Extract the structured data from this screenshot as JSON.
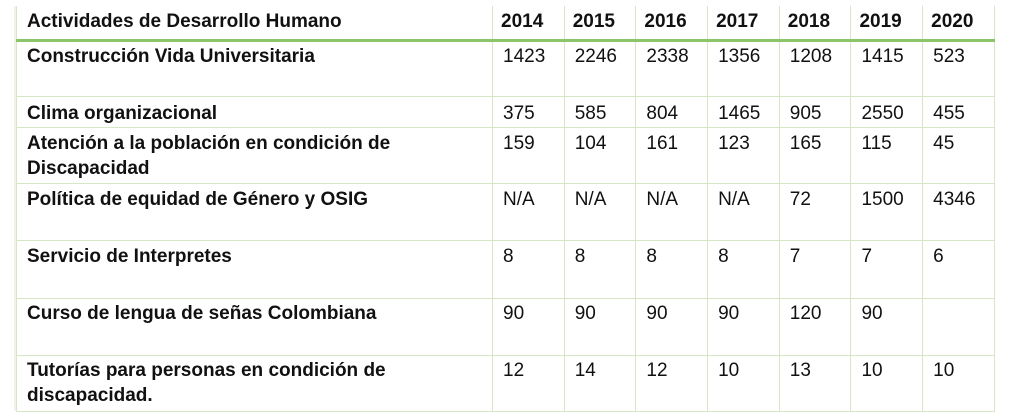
{
  "table": {
    "header": {
      "activity": "Actividades de Desarrollo Humano",
      "years": [
        "2014",
        "2015",
        "2016",
        "2017",
        "2018",
        "2019",
        "2020"
      ]
    },
    "rows": [
      {
        "label": "Construcción Vida Universitaria",
        "values": [
          "1423",
          "2246",
          "2338",
          "1356",
          "1208",
          "1415",
          "523"
        ]
      },
      {
        "label": "Clima organizacional",
        "values": [
          "375",
          "585",
          "804",
          "1465",
          "905",
          "2550",
          "455"
        ]
      },
      {
        "label": "Atención a la población en condición de Discapacidad",
        "values": [
          "159",
          "104",
          "161",
          "123",
          "165",
          "115",
          "45"
        ]
      },
      {
        "label": "Política de equidad de Género y OSIG",
        "values": [
          "N/A",
          "N/A",
          "N/A",
          "N/A",
          "72",
          "1500",
          "4346"
        ]
      },
      {
        "label": "Servicio de Interpretes",
        "values": [
          "8",
          "8",
          "8",
          "8",
          "7",
          "7",
          "6"
        ]
      },
      {
        "label": "Curso de lengua de señas Colombiana",
        "values": [
          "90",
          "90",
          "90",
          "90",
          "120",
          "90",
          ""
        ]
      },
      {
        "label": "Tutorías para personas en condición de discapacidad.",
        "values": [
          "12",
          "14",
          "12",
          "10",
          "13",
          "10",
          "10"
        ]
      }
    ]
  }
}
